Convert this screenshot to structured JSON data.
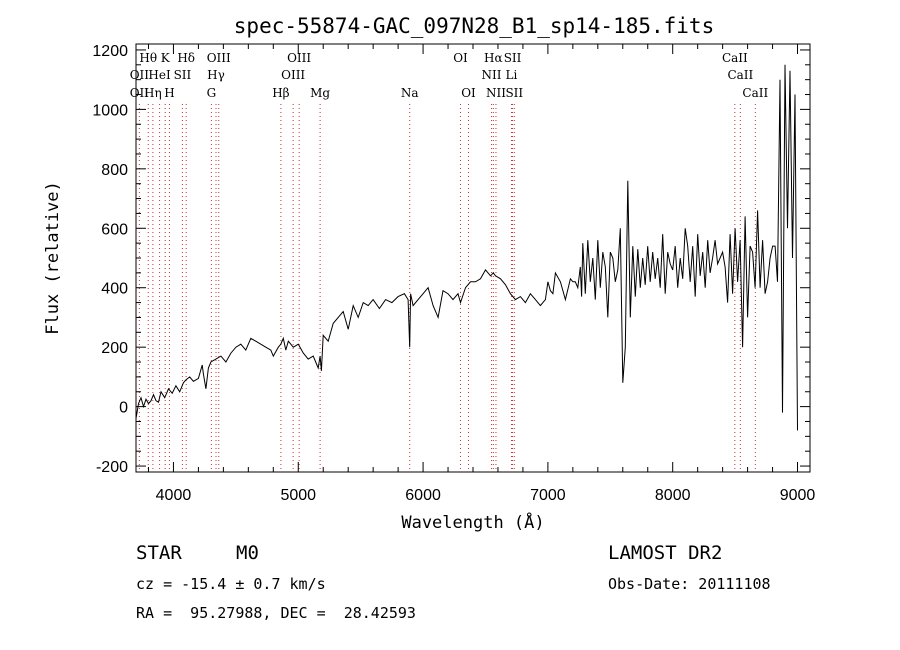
{
  "chart_data": {
    "type": "line",
    "title": "spec-55874-GAC_097N28_B1_sp14-185.fits",
    "xlabel": "Wavelength (Å)",
    "ylabel": "Flux (relative)",
    "xlim": [
      3700,
      9100
    ],
    "ylim": [
      -220,
      1220
    ],
    "xticks": [
      4000,
      5000,
      6000,
      7000,
      8000,
      9000
    ],
    "yticks": [
      -200,
      0,
      200,
      400,
      600,
      800,
      1000,
      1200
    ],
    "grid": false,
    "series": [
      {
        "x": [
          3700,
          3720,
          3740,
          3760,
          3780,
          3800,
          3820,
          3840,
          3860,
          3880,
          3900,
          3930,
          3960,
          3990,
          4020,
          4050,
          4080,
          4100,
          4130,
          4160,
          4200,
          4230,
          4240,
          4260,
          4280,
          4300,
          4340,
          4380,
          4420,
          4460,
          4500,
          4540,
          4580,
          4620,
          4660,
          4700,
          4740,
          4780,
          4800,
          4840,
          4860,
          4880,
          4900,
          4920,
          4960,
          5000,
          5040,
          5080,
          5120,
          5140,
          5160,
          5175,
          5185,
          5200,
          5240,
          5280,
          5320,
          5360,
          5400,
          5440,
          5480,
          5520,
          5560,
          5600,
          5650,
          5700,
          5750,
          5800,
          5850,
          5880,
          5893,
          5900,
          5920,
          5960,
          6000,
          6040,
          6080,
          6120,
          6160,
          6200,
          6240,
          6280,
          6300,
          6340,
          6380,
          6420,
          6460,
          6500,
          6540,
          6563,
          6580,
          6620,
          6660,
          6700,
          6740,
          6780,
          6820,
          6860,
          6900,
          6940,
          6980,
          7000,
          7020,
          7040,
          7060,
          7100,
          7140,
          7180,
          7200,
          7220,
          7240,
          7260,
          7270,
          7280,
          7300,
          7320,
          7340,
          7360,
          7380,
          7400,
          7420,
          7440,
          7460,
          7480,
          7500,
          7520,
          7540,
          7560,
          7580,
          7600,
          7620,
          7640,
          7660,
          7680,
          7700,
          7720,
          7740,
          7760,
          7780,
          7800,
          7820,
          7840,
          7860,
          7880,
          7900,
          7920,
          7940,
          7960,
          7980,
          8000,
          8020,
          8040,
          8060,
          8080,
          8100,
          8120,
          8140,
          8160,
          8180,
          8200,
          8220,
          8240,
          8260,
          8280,
          8300,
          8320,
          8340,
          8360,
          8380,
          8400,
          8420,
          8440,
          8460,
          8480,
          8500,
          8520,
          8540,
          8560,
          8580,
          8600,
          8620,
          8640,
          8660,
          8680,
          8700,
          8720,
          8740,
          8760,
          8780,
          8800,
          8820,
          8840,
          8860,
          8880,
          8900,
          8920,
          8940,
          8960,
          8980,
          9000
        ],
        "y": [
          -40,
          10,
          30,
          0,
          25,
          10,
          20,
          40,
          20,
          15,
          50,
          30,
          60,
          45,
          70,
          50,
          80,
          90,
          100,
          85,
          95,
          140,
          110,
          60,
          130,
          150,
          160,
          170,
          150,
          180,
          200,
          210,
          190,
          230,
          220,
          210,
          200,
          190,
          170,
          200,
          210,
          230,
          190,
          220,
          200,
          210,
          180,
          160,
          170,
          150,
          130,
          170,
          120,
          240,
          220,
          280,
          300,
          320,
          260,
          340,
          300,
          350,
          340,
          360,
          330,
          360,
          350,
          370,
          380,
          360,
          200,
          380,
          340,
          360,
          380,
          400,
          340,
          300,
          390,
          380,
          360,
          380,
          350,
          400,
          420,
          420,
          430,
          460,
          440,
          450,
          440,
          430,
          410,
          380,
          360,
          370,
          350,
          380,
          360,
          340,
          360,
          420,
          390,
          380,
          450,
          420,
          360,
          430,
          420,
          420,
          400,
          470,
          370,
          550,
          380,
          560,
          420,
          500,
          360,
          560,
          400,
          520,
          470,
          300,
          520,
          500,
          420,
          460,
          600,
          80,
          200,
          760,
          300,
          540,
          370,
          530,
          400,
          500,
          410,
          540,
          420,
          520,
          430,
          500,
          400,
          580,
          380,
          520,
          480,
          460,
          540,
          400,
          500,
          430,
          600,
          540,
          420,
          540,
          370,
          580,
          440,
          520,
          400,
          560,
          450,
          500,
          560,
          480,
          500,
          520,
          470,
          350,
          580,
          380,
          600,
          420,
          560,
          200,
          640,
          300,
          540,
          520,
          400,
          660,
          400,
          560,
          380,
          420,
          500,
          540,
          540,
          420,
          1100,
          -20,
          1150,
          600,
          1130,
          500,
          1050,
          -80
        ]
      }
    ],
    "lines_lower": [
      {
        "label": "OII",
        "wave": 3727
      },
      {
        "label": "Hη",
        "wave": 3835
      },
      {
        "label": "H",
        "wave": 3968
      },
      {
        "label": "G",
        "wave": 4304
      },
      {
        "label": "Hβ",
        "wave": 4861
      },
      {
        "label": "Mg",
        "wave": 5175
      },
      {
        "label": "Na",
        "wave": 5893
      },
      {
        "label": "OI",
        "wave": 6364
      },
      {
        "label": "NII",
        "wave": 6584
      },
      {
        "label": "SII",
        "wave": 6731
      },
      {
        "label": "CaII",
        "wave": 8662
      }
    ],
    "lines_middle": [
      {
        "label": "OII",
        "wave": 3727
      },
      {
        "label": "HeI",
        "wave": 3889
      },
      {
        "label": "SII",
        "wave": 4072
      },
      {
        "label": "Hγ",
        "wave": 4341
      },
      {
        "label": "OIII",
        "wave": 4959
      },
      {
        "label": "NII",
        "wave": 6548
      },
      {
        "label": "Li",
        "wave": 6708
      },
      {
        "label": "CaII",
        "wave": 8542
      }
    ],
    "lines_upper": [
      {
        "label": "Hθ",
        "wave": 3798
      },
      {
        "label": "K",
        "wave": 3934
      },
      {
        "label": "Hδ",
        "wave": 4102
      },
      {
        "label": "OIII",
        "wave": 4363
      },
      {
        "label": "OIII",
        "wave": 5007
      },
      {
        "label": "OI",
        "wave": 6300
      },
      {
        "label": "Hα",
        "wave": 6563
      },
      {
        "label": "SII",
        "wave": 6717
      },
      {
        "label": "CaII",
        "wave": 8498
      }
    ]
  },
  "info": {
    "class": "STAR",
    "subclass": "M0",
    "cz": "cz = -15.4 ± 0.7 km/s",
    "coords": "RA =  95.27988, DEC =  28.42593",
    "survey": "LAMOST DR2",
    "obs_date": "Obs-Date: 20111108"
  },
  "colors": {
    "spectrum": "#000000",
    "line_markers": "#cc3333",
    "frame": "#000000"
  }
}
